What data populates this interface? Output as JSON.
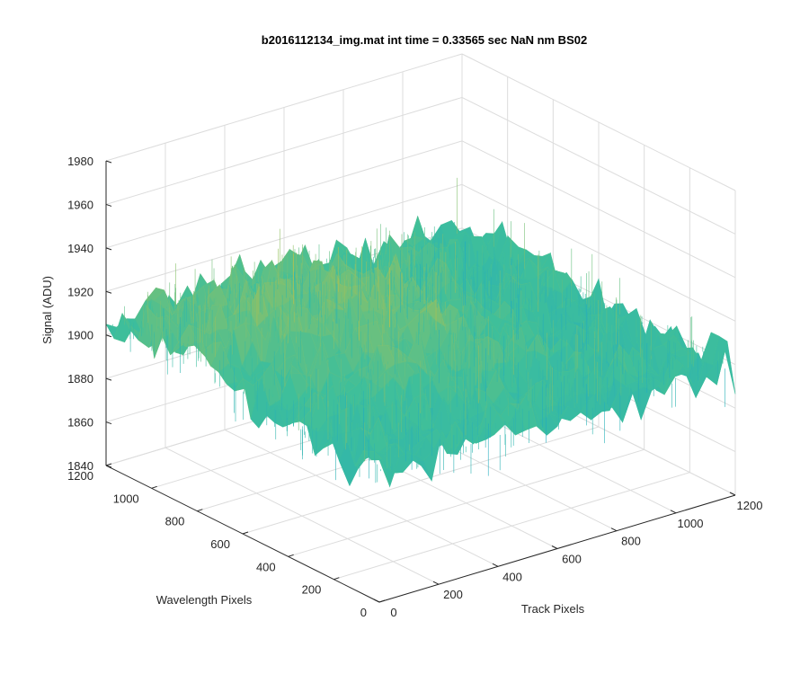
{
  "chart_data": {
    "type": "surface",
    "title": "b2016112134_img.mat int time = 0.33565 sec  NaN nm BS02",
    "xlabel": "Track Pixels",
    "ylabel": "Wavelength Pixels",
    "zlabel": "Signal (ADU)",
    "xlim": [
      0,
      1200
    ],
    "ylim": [
      0,
      1200
    ],
    "zlim": [
      1840,
      1980
    ],
    "x_ticks": [
      "0",
      "200",
      "400",
      "600",
      "800",
      "1000",
      "1200"
    ],
    "y_ticks": [
      "0",
      "200",
      "400",
      "600",
      "800",
      "1000",
      "1200"
    ],
    "z_ticks": [
      "1840",
      "1860",
      "1880",
      "1900",
      "1920",
      "1940",
      "1960",
      "1980"
    ],
    "grid": true,
    "colormap": "parula",
    "z_range_shown": [
      1855,
      1955
    ],
    "z_mean_approx": 1905
  },
  "colors": {
    "low": "#0d9fd8",
    "mid": "#3fbf9a",
    "high": "#e9c22d"
  }
}
